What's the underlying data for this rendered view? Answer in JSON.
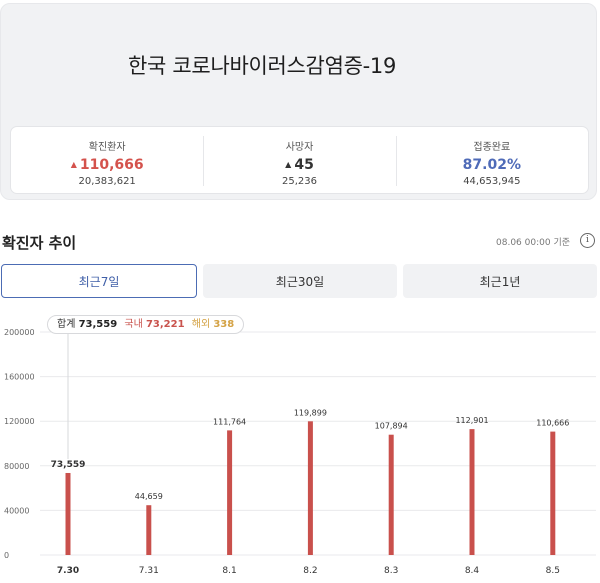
{
  "header": {
    "title": "한국 코로나바이러스감염증-19"
  },
  "stats": [
    {
      "label": "확진환자",
      "value": "110,666",
      "trend": "up",
      "sub": "20,383,621",
      "color": "#d4524c"
    },
    {
      "label": "사망자",
      "value": "45",
      "trend": "up",
      "sub": "25,236",
      "color": "#333333"
    },
    {
      "label": "접종완료",
      "value": "87.02%",
      "trend": "",
      "sub": "44,653,945",
      "color": "#4f6bb8"
    }
  ],
  "section": {
    "title": "확진자 추이",
    "as_of": "08.06 00:00 기준",
    "info_icon": "info-icon"
  },
  "tabs": [
    {
      "label": "최근7일",
      "active": true
    },
    {
      "label": "최근30일",
      "active": false
    },
    {
      "label": "최근1년",
      "active": false
    }
  ],
  "tooltip": {
    "total_label": "합계",
    "total_value": "73,559",
    "domestic_label": "국내",
    "domestic_value": "73,221",
    "overseas_label": "해외",
    "overseas_value": "338"
  },
  "chart_data": {
    "type": "bar",
    "categories": [
      "7.30",
      "7.31",
      "8.1",
      "8.2",
      "8.3",
      "8.4",
      "8.5"
    ],
    "values": [
      73559,
      44659,
      111764,
      119899,
      107894,
      112901,
      110666
    ],
    "value_labels": [
      "73,559",
      "44,659",
      "111,764",
      "119,899",
      "107,894",
      "112,901",
      "110,666"
    ],
    "selected_index": 0,
    "yticks": [
      0,
      40000,
      80000,
      120000,
      160000,
      200000
    ],
    "ylim": [
      0,
      200000
    ],
    "bar_color": "#c9504c",
    "grid": true
  }
}
